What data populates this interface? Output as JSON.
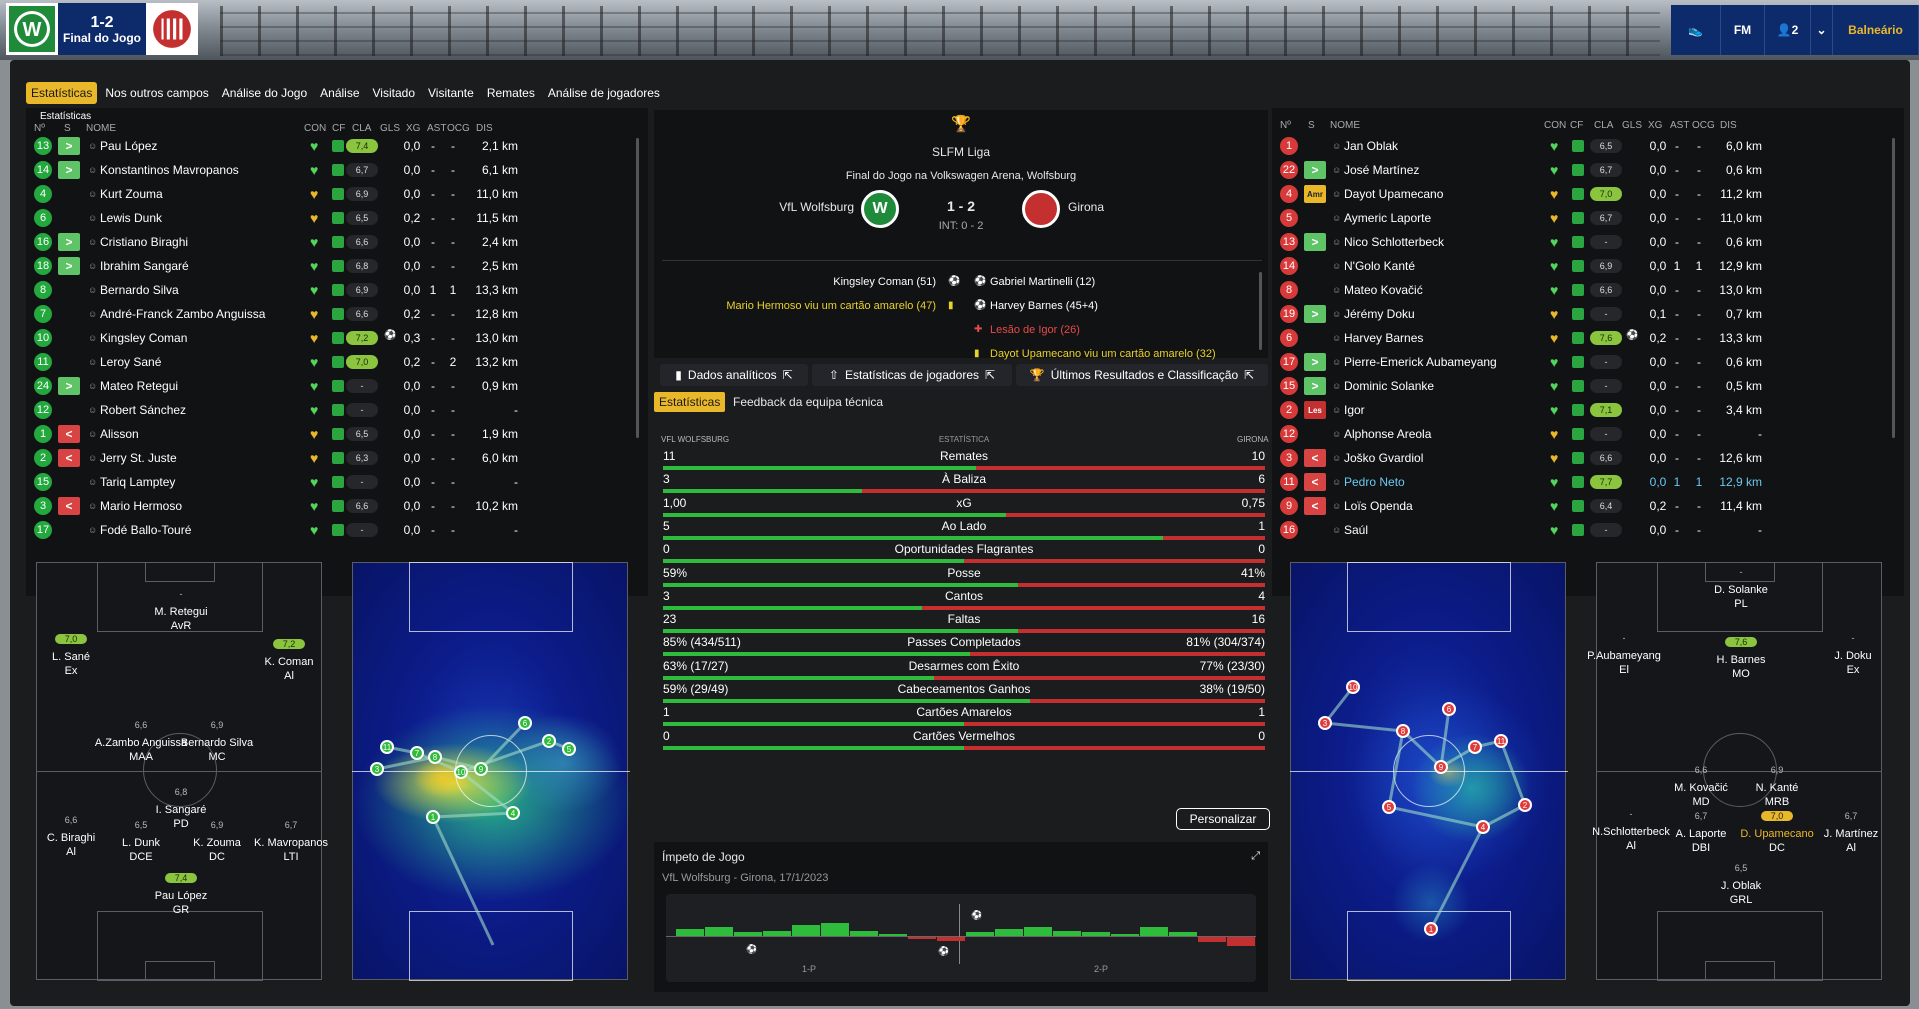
{
  "header": {
    "score": "1-2",
    "status": "Final do Jogo",
    "home_crest": "wolfsburg-crest",
    "away_crest": "girona-crest",
    "players_count": "2",
    "balneario": "Balneário"
  },
  "tabs": [
    "Estatísticas",
    "Nos outros campos",
    "Análise do Jogo",
    "Análise",
    "Visitado",
    "Visitante",
    "Remates",
    "Análise de jogadores"
  ],
  "home_panel": {
    "section": "Estatísticas",
    "headers": {
      "num": "Nº",
      "s": "S",
      "name": "NOME",
      "con": "CON",
      "cf": "CF",
      "cla": "CLA",
      "gls": "GLS",
      "xg": "XG",
      "ast": "AST",
      "ocg": "OCG",
      "dis": "DIS"
    },
    "players": [
      {
        "num": "13",
        "sub": "in",
        "name": "Pau López",
        "cla": "7,4",
        "xg": "0,0",
        "ast": "-",
        "ocg": "-",
        "dis": "2,1 km"
      },
      {
        "num": "14",
        "sub": "in",
        "name": "Konstantinos Mavropanos",
        "cla": "6,7",
        "xg": "0,0",
        "ast": "-",
        "ocg": "-",
        "dis": "6,1 km"
      },
      {
        "num": "4",
        "sub": "",
        "name": "Kurt Zouma",
        "cla": "6,9",
        "xg": "0,0",
        "ast": "-",
        "ocg": "-",
        "dis": "11,0 km"
      },
      {
        "num": "6",
        "sub": "",
        "name": "Lewis Dunk",
        "cla": "6,5",
        "xg": "0,2",
        "ast": "-",
        "ocg": "-",
        "dis": "11,5 km"
      },
      {
        "num": "16",
        "sub": "in",
        "name": "Cristiano Biraghi",
        "cla": "6,6",
        "xg": "0,0",
        "ast": "-",
        "ocg": "-",
        "dis": "2,4 km"
      },
      {
        "num": "18",
        "sub": "in",
        "name": "Ibrahim Sangaré",
        "cla": "6,8",
        "xg": "0,0",
        "ast": "-",
        "ocg": "-",
        "dis": "2,5 km"
      },
      {
        "num": "8",
        "sub": "",
        "name": "Bernardo Silva",
        "cla": "6,9",
        "xg": "0,0",
        "ast": "1",
        "ocg": "1",
        "dis": "13,3 km"
      },
      {
        "num": "7",
        "sub": "",
        "name": "André-Franck Zambo Anguissa",
        "cla": "6,6",
        "xg": "0,2",
        "ast": "-",
        "ocg": "-",
        "dis": "12,8 km"
      },
      {
        "num": "10",
        "sub": "",
        "name": "Kingsley Coman",
        "cla": "7,2",
        "xg": "0,3",
        "ast": "-",
        "ocg": "-",
        "dis": "13,0 km"
      },
      {
        "num": "11",
        "sub": "",
        "name": "Leroy Sané",
        "cla": "7,0",
        "xg": "0,2",
        "ast": "-",
        "ocg": "2",
        "dis": "13,2 km"
      },
      {
        "num": "24",
        "sub": "in",
        "name": "Mateo Retegui",
        "cla": "-",
        "xg": "0,0",
        "ast": "-",
        "ocg": "-",
        "dis": "0,9 km"
      },
      {
        "num": "12",
        "sub": "",
        "name": "Robert Sánchez",
        "cla": "-",
        "xg": "0,0",
        "ast": "-",
        "ocg": "-",
        "dis": "-"
      },
      {
        "num": "1",
        "sub": "out",
        "name": "Alisson",
        "cla": "6,5",
        "xg": "0,0",
        "ast": "-",
        "ocg": "-",
        "dis": "1,9 km"
      },
      {
        "num": "2",
        "sub": "out",
        "name": "Jerry St. Juste",
        "cla": "6,3",
        "xg": "0,0",
        "ast": "-",
        "ocg": "-",
        "dis": "6,0 km"
      },
      {
        "num": "15",
        "sub": "",
        "name": "Tariq Lamptey",
        "cla": "-",
        "xg": "0,0",
        "ast": "-",
        "ocg": "-",
        "dis": "-"
      },
      {
        "num": "3",
        "sub": "outy",
        "name": "Mario Hermoso",
        "cla": "6,6",
        "xg": "0,0",
        "ast": "-",
        "ocg": "-",
        "dis": "10,2 km"
      },
      {
        "num": "17",
        "sub": "",
        "name": "Fodé Ballo-Touré",
        "cla": "-",
        "xg": "0,0",
        "ast": "-",
        "ocg": "-",
        "dis": "-"
      }
    ]
  },
  "away_panel": {
    "headers": {
      "num": "Nº",
      "s": "S",
      "name": "NOME",
      "con": "CON",
      "cf": "CF",
      "cla": "CLA",
      "gls": "GLS",
      "xg": "XG",
      "ast": "AST",
      "ocg": "OCG",
      "dis": "DIS"
    },
    "players": [
      {
        "num": "1",
        "sub": "",
        "name": "Jan Oblak",
        "cla": "6,5",
        "xg": "0,0",
        "ast": "-",
        "ocg": "-",
        "dis": "6,0 km"
      },
      {
        "num": "22",
        "sub": "in",
        "name": "José Martínez",
        "cla": "6,7",
        "xg": "0,0",
        "ast": "-",
        "ocg": "-",
        "dis": "0,6 km"
      },
      {
        "num": "4",
        "sub": "amr",
        "name": "Dayot Upamecano",
        "cla": "7,0",
        "xg": "0,0",
        "ast": "-",
        "ocg": "-",
        "dis": "11,2 km"
      },
      {
        "num": "5",
        "sub": "",
        "name": "Aymeric Laporte",
        "cla": "6,7",
        "xg": "0,0",
        "ast": "-",
        "ocg": "-",
        "dis": "11,0 km"
      },
      {
        "num": "13",
        "sub": "in",
        "name": "Nico Schlotterbeck",
        "cla": "-",
        "xg": "0,0",
        "ast": "-",
        "ocg": "-",
        "dis": "0,6 km"
      },
      {
        "num": "14",
        "sub": "",
        "name": "N'Golo Kanté",
        "cla": "6,9",
        "xg": "0,0",
        "ast": "1",
        "ocg": "1",
        "dis": "12,9 km"
      },
      {
        "num": "8",
        "sub": "",
        "name": "Mateo Kovačić",
        "cla": "6,6",
        "xg": "0,0",
        "ast": "-",
        "ocg": "-",
        "dis": "13,0 km"
      },
      {
        "num": "19",
        "sub": "in",
        "name": "Jérémy Doku",
        "cla": "-",
        "xg": "0,1",
        "ast": "-",
        "ocg": "-",
        "dis": "0,7 km"
      },
      {
        "num": "6",
        "sub": "",
        "name": "Harvey Barnes",
        "cla": "7,6",
        "xg": "0,2",
        "ast": "-",
        "ocg": "-",
        "dis": "13,3 km"
      },
      {
        "num": "17",
        "sub": "in",
        "name": "Pierre-Emerick Aubameyang",
        "cla": "-",
        "xg": "0,0",
        "ast": "-",
        "ocg": "-",
        "dis": "0,6 km"
      },
      {
        "num": "15",
        "sub": "in",
        "name": "Dominic Solanke",
        "cla": "-",
        "xg": "0,0",
        "ast": "-",
        "ocg": "-",
        "dis": "0,5 km"
      },
      {
        "num": "2",
        "sub": "les",
        "name": "Igor",
        "cla": "7,1",
        "xg": "0,0",
        "ast": "-",
        "ocg": "-",
        "dis": "3,4 km"
      },
      {
        "num": "12",
        "sub": "",
        "name": "Alphonse Areola",
        "cla": "-",
        "xg": "0,0",
        "ast": "-",
        "ocg": "-",
        "dis": "-"
      },
      {
        "num": "3",
        "sub": "out",
        "name": "Joško Gvardiol",
        "cla": "6,6",
        "xg": "0,0",
        "ast": "-",
        "ocg": "-",
        "dis": "12,6 km"
      },
      {
        "num": "11",
        "sub": "out",
        "name": "Pedro Neto",
        "cla": "7,7",
        "xg": "0,0",
        "ast": "1",
        "ocg": "1",
        "dis": "12,9 km",
        "hl": true
      },
      {
        "num": "9",
        "sub": "out",
        "name": "Loïs Openda",
        "cla": "6,4",
        "xg": "0,2",
        "ast": "-",
        "ocg": "-",
        "dis": "11,4 km"
      },
      {
        "num": "16",
        "sub": "",
        "name": "Saúl",
        "cla": "-",
        "xg": "0,0",
        "ast": "-",
        "ocg": "-",
        "dis": "-"
      }
    ]
  },
  "match": {
    "league": "SLFM Liga",
    "venue": "Final do Jogo na Volkswagen Arena, Wolfsburg",
    "home": "VfL Wolfsburg",
    "away": "Girona",
    "score": "1 - 2",
    "ht": "INT: 0 - 2",
    "events_home": [
      "Kingsley Coman (51)",
      "Mario Hermoso viu um cartão amarelo (47)"
    ],
    "events_away": [
      "Gabriel Martinelli (12)",
      "Harvey Barnes (45+4)",
      "Lesão de Igor (26)",
      "Dayot Upamecano viu um cartão amarelo (32)"
    ],
    "btn_analytics": "Dados analíticos",
    "btn_player_stats": "Estatísticas de jogadores",
    "btn_results": "Últimos Resultados e Classificação",
    "stats_tab": "Estatísticas",
    "feedback_tab": "Feedback da equipa técnica",
    "home_short": "VFL WOLFSBURG",
    "stat_header": "ESTATÍSTICA",
    "away_short": "GIRONA",
    "personalizar": "Personalizar",
    "momentum_title": "Ímpeto de Jogo",
    "momentum_sub": "VfL Wolfsburg - Girona, 17/1/2023",
    "momentum_1p": "1-P",
    "momentum_2p": "2-P"
  },
  "stats": [
    {
      "label": "Remates",
      "home": "11",
      "away": "10",
      "share": 0.52
    },
    {
      "label": "À Baliza",
      "home": "3",
      "away": "6",
      "share": 0.33
    },
    {
      "label": "xG",
      "home": "1,00",
      "away": "0,75",
      "share": 0.57
    },
    {
      "label": "Ao Lado",
      "home": "5",
      "away": "1",
      "share": 0.83
    },
    {
      "label": "Oportunidades Flagrantes",
      "home": "0",
      "away": "0",
      "share": 0.5
    },
    {
      "label": "Posse",
      "home": "59%",
      "away": "41%",
      "share": 0.59
    },
    {
      "label": "Cantos",
      "home": "3",
      "away": "4",
      "share": 0.43
    },
    {
      "label": "Faltas",
      "home": "23",
      "away": "16",
      "share": 0.59
    },
    {
      "label": "Passes Completados",
      "home": "85% (434/511)",
      "away": "81% (304/374)",
      "share": 0.51
    },
    {
      "label": "Desarmes com Êxito",
      "home": "63% (17/27)",
      "away": "77% (23/30)",
      "share": 0.45
    },
    {
      "label": "Cabeceamentos Ganhos",
      "home": "59% (29/49)",
      "away": "38% (19/50)",
      "share": 0.61
    },
    {
      "label": "Cartões Amarelos",
      "home": "1",
      "away": "1",
      "share": 0.5
    },
    {
      "label": "Cartões Vermelhos",
      "home": "0",
      "away": "0",
      "share": 0.5
    }
  ],
  "home_formation": [
    {
      "name": "M. Retegui",
      "pos": "AvR",
      "val": "-"
    },
    {
      "name": "L. Sané",
      "pos": "Ex",
      "val": "7,0",
      "top": true
    },
    {
      "name": "K. Coman",
      "pos": "Al",
      "val": "7,2",
      "top": true
    },
    {
      "name": "A.Zambo Anguissa",
      "pos": "MAA",
      "val": "6,6"
    },
    {
      "name": "Bernardo Silva",
      "pos": "MC",
      "val": "6,9"
    },
    {
      "name": "I. Sangaré",
      "pos": "PD",
      "val": "6,8"
    },
    {
      "name": "C. Biraghi",
      "pos": "Al",
      "val": "6,6"
    },
    {
      "name": "L. Dunk",
      "pos": "DCE",
      "val": "6,5"
    },
    {
      "name": "K. Zouma",
      "pos": "DC",
      "val": "6,9"
    },
    {
      "name": "K. Mavropanos",
      "pos": "LTI",
      "val": "6,7"
    },
    {
      "name": "Pau López",
      "pos": "GR",
      "val": "7,4",
      "top": true
    }
  ],
  "away_formation": [
    {
      "name": "D. Solanke",
      "pos": "PL",
      "val": "-"
    },
    {
      "name": "P.Aubameyang",
      "pos": "El",
      "val": "-"
    },
    {
      "name": "H. Barnes",
      "pos": "MO",
      "val": "7,6",
      "top": true
    },
    {
      "name": "J. Doku",
      "pos": "Ex",
      "val": "-"
    },
    {
      "name": "M. Kovačić",
      "pos": "MD",
      "val": "6,6"
    },
    {
      "name": "N. Kanté",
      "pos": "MRB",
      "val": "6,9"
    },
    {
      "name": "N.Schlotterbeck",
      "pos": "Al",
      "val": "-"
    },
    {
      "name": "A. Laporte",
      "pos": "DBI",
      "val": "6,7"
    },
    {
      "name": "D. Upamecano",
      "pos": "DC",
      "val": "7,0",
      "top": true,
      "gold": true
    },
    {
      "name": "J. Martínez",
      "pos": "Al",
      "val": "6,7"
    },
    {
      "name": "J. Oblak",
      "pos": "GRL",
      "val": "6,5"
    }
  ],
  "home_map_nums": [
    "11",
    "3",
    "7",
    "8",
    "10",
    "9",
    "2",
    "5",
    "6",
    "4",
    "1"
  ],
  "away_map_nums": [
    "10",
    "3",
    "8",
    "6",
    "9",
    "7",
    "11",
    "2",
    "5",
    "4",
    "1"
  ],
  "momentum_values": [
    0.4,
    0.5,
    0.2,
    0.3,
    0.6,
    0.7,
    0.3,
    0.1,
    -0.1,
    -0.2,
    0.2,
    0.4,
    0.5,
    0.3,
    0.2,
    0.1,
    0.5,
    0.2,
    -0.3,
    -0.5
  ],
  "colors": {
    "accent": "#e9b82a",
    "home": "#2fbb3c",
    "away": "#c42f2f"
  }
}
